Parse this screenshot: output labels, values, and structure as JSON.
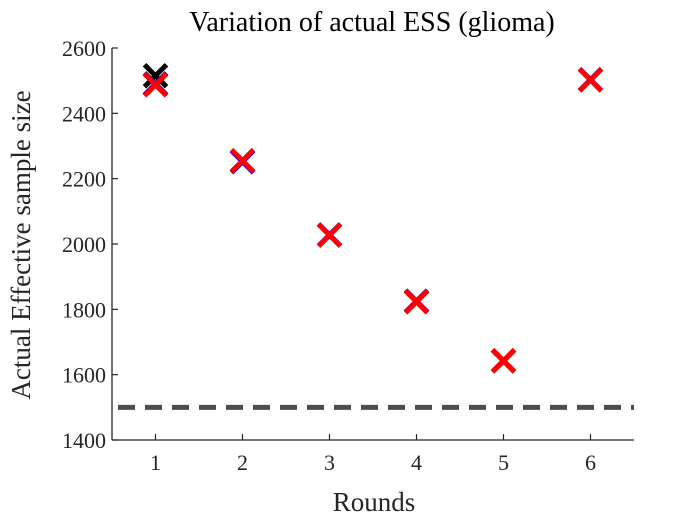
{
  "chart_data": {
    "type": "scatter",
    "title": "Variation of actual ESS (glioma)",
    "xlabel": "Rounds",
    "ylabel": "Actual Effective sample size",
    "xlim": [
      0.5,
      6.5
    ],
    "ylim": [
      1400,
      2600
    ],
    "xticks": [
      "1",
      "2",
      "3",
      "4",
      "5",
      "6"
    ],
    "yticks": [
      "1400",
      "1600",
      "1800",
      "2000",
      "2200",
      "2400",
      "2600"
    ],
    "grid": false,
    "legend": "none",
    "series": [
      {
        "color": "#000000",
        "x": [
          1
        ],
        "y": [
          2515
        ]
      },
      {
        "color": "#0000ff",
        "x": [
          1,
          2,
          3,
          4,
          5,
          6
        ],
        "y": [
          2490,
          2252,
          2028,
          1825,
          1642,
          2503
        ]
      },
      {
        "color": "#ff0000",
        "x": [
          1,
          2,
          3,
          4,
          5,
          6
        ],
        "y": [
          2487,
          2255,
          2027,
          1823,
          1643,
          2502
        ]
      }
    ],
    "reference_line": {
      "y": 1500,
      "style": "dashed",
      "color": "#4d4d4d"
    }
  }
}
